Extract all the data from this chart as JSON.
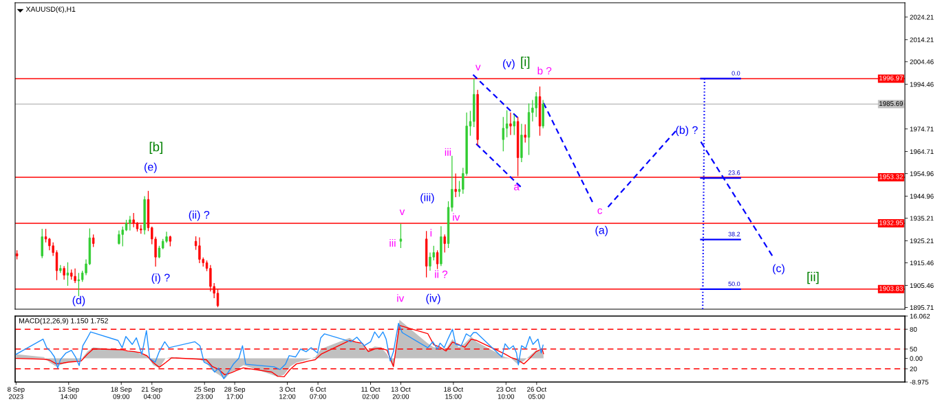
{
  "chart_data": [
    {
      "type": "candlestick",
      "title": "XAUUSD(€),H1",
      "x": [
        "2023-09-08T21:00",
        "2023-09-11T04:00",
        "2023-09-11T12:00",
        "2023-09-11T20:00",
        "2023-09-12T04:00",
        "2023-09-12T12:00",
        "2023-09-12T20:00",
        "2023-09-13T04:00",
        "2023-09-13T12:00",
        "2023-09-13T20:00",
        "2023-09-14T04:00",
        "2023-09-14T12:00",
        "2023-09-14T20:00",
        "2023-09-15T04:00",
        "2023-09-15T12:00",
        "2023-09-15T20:00",
        "2023-09-18T04:00",
        "2023-09-18T12:00",
        "2023-09-18T20:00",
        "2023-09-19T04:00",
        "2023-09-19T12:00",
        "2023-09-19T20:00",
        "2023-09-20T04:00",
        "2023-09-20T12:00",
        "2023-09-20T20:00",
        "2023-09-21T04:00",
        "2023-09-21T12:00",
        "2023-09-21T20:00",
        "2023-09-22T04:00",
        "2023-09-22T12:00",
        "2023-09-22T20:00",
        "2023-09-25T04:00",
        "2023-09-25T12:00",
        "2023-09-25T20:00",
        "2023-09-26T04:00",
        "2023-09-26T12:00",
        "2023-09-26T20:00",
        "2023-09-27T04:00",
        "2023-10-13T20:00",
        "2023-10-16T04:00",
        "2023-10-16T12:00",
        "2023-10-16T20:00",
        "2023-10-17T04:00",
        "2023-10-17T12:00",
        "2023-10-17T20:00",
        "2023-10-18T04:00",
        "2023-10-18T12:00",
        "2023-10-18T20:00",
        "2023-10-19T04:00",
        "2023-10-19T12:00",
        "2023-10-19T20:00",
        "2023-10-20T04:00",
        "2023-10-20T12:00",
        "2023-10-20T20:00",
        "2023-10-23T04:00",
        "2023-10-23T12:00",
        "2023-10-23T20:00",
        "2023-10-24T04:00",
        "2023-10-24T12:00",
        "2023-10-24T20:00",
        "2023-10-25T04:00",
        "2023-10-25T12:00",
        "2023-10-25T20:00",
        "2023-10-26T04:00",
        "2023-10-26T12:00",
        "2023-10-26T19:00"
      ],
      "ohlc": [
        [
          1919.5,
          1921,
          1917,
          1918.5
        ],
        [
          1918.5,
          1930.5,
          1917.5,
          1927
        ],
        [
          1927,
          1930.5,
          1924.5,
          1926
        ],
        [
          1926,
          1926.5,
          1921,
          1923
        ],
        [
          1923,
          1924.5,
          1918.5,
          1920
        ],
        [
          1920,
          1921,
          1907.8,
          1912
        ],
        [
          1912,
          1914.5,
          1911,
          1913
        ],
        [
          1913,
          1914,
          1908,
          1910
        ],
        [
          1910,
          1915.7,
          1905.3,
          1911
        ],
        [
          1911,
          1912.5,
          1908,
          1909.5
        ],
        [
          1909.5,
          1913,
          1906.5,
          1907.5
        ],
        [
          1907.5,
          1911,
          1900.7,
          1908
        ],
        [
          1908,
          1912,
          1907,
          1911
        ],
        [
          1911,
          1917,
          1910,
          1915
        ],
        [
          1915,
          1930.7,
          1914.5,
          1926.5
        ],
        [
          1926.5,
          1928,
          1922.5,
          1924
        ],
        [
          1924,
          1929.8,
          1923.5,
          1928
        ],
        [
          1928,
          1931.5,
          1922.8,
          1930
        ],
        [
          1930,
          1934.5,
          1929.5,
          1933
        ],
        [
          1933,
          1936.2,
          1929.8,
          1934.5
        ],
        [
          1934.5,
          1937.5,
          1931.2,
          1933
        ],
        [
          1933,
          1933.5,
          1929.3,
          1930.5
        ],
        [
          1930.5,
          1932.3,
          1928.3,
          1930
        ],
        [
          1930,
          1945,
          1928,
          1943.5
        ],
        [
          1943.5,
          1947.3,
          1929.5,
          1931
        ],
        [
          1931,
          1931.5,
          1923.7,
          1926
        ],
        [
          1926,
          1927,
          1913.8,
          1918
        ],
        [
          1918,
          1923,
          1917.5,
          1922
        ],
        [
          1922,
          1926,
          1921.5,
          1925
        ],
        [
          1925,
          1929.2,
          1924.3,
          1927
        ],
        [
          1927,
          1927.5,
          1922.8,
          1925
        ],
        [
          1925,
          1927.2,
          1921.2,
          1923
        ],
        [
          1923,
          1926.7,
          1915.3,
          1917
        ],
        [
          1917,
          1917.8,
          1913.8,
          1915.5
        ],
        [
          1915.5,
          1916.5,
          1911.8,
          1913
        ],
        [
          1913,
          1914.5,
          1902.8,
          1905
        ],
        [
          1905,
          1906.5,
          1899.8,
          1902
        ],
        [
          1902,
          1903.7,
          1895.8,
          1896.5
        ],
        [
          1925,
          1932.7,
          1922,
          1926
        ],
        [
          1926,
          1929.5,
          1909,
          1914
        ],
        [
          1914,
          1920,
          1912,
          1918
        ],
        [
          1918,
          1923,
          1916.5,
          1920
        ],
        [
          1920,
          1921,
          1912.7,
          1915
        ],
        [
          1915,
          1931.7,
          1914,
          1927
        ],
        [
          1927,
          1928,
          1920,
          1924
        ],
        [
          1924,
          1942.7,
          1922,
          1940
        ],
        [
          1940,
          1962.8,
          1938.2,
          1948
        ],
        [
          1948,
          1955,
          1944.5,
          1947
        ],
        [
          1947,
          1951.7,
          1944.7,
          1948
        ],
        [
          1948,
          1957.5,
          1946,
          1955
        ],
        [
          1955,
          1982,
          1954,
          1976
        ],
        [
          1976,
          1982.7,
          1971.7,
          1978
        ],
        [
          1978,
          1997,
          1975.5,
          1990
        ],
        [
          1990,
          1992,
          1967.5,
          1970
        ],
        [
          1970,
          1980,
          1964.8,
          1975
        ],
        [
          1975,
          1983,
          1971,
          1977
        ],
        [
          1977,
          1982,
          1972,
          1976
        ],
        [
          1976,
          1981,
          1972,
          1978
        ],
        [
          1978,
          1980,
          1953.8,
          1962
        ],
        [
          1962,
          1977,
          1960,
          1972
        ],
        [
          1972,
          1976.7,
          1968.7,
          1971
        ],
        [
          1971,
          1986,
          1963.2,
          1982
        ],
        [
          1982,
          1987.5,
          1978,
          1984
        ],
        [
          1984,
          1991,
          1980,
          1989
        ],
        [
          1989,
          1993.5,
          1971.7,
          1976
        ],
        [
          1976,
          1987.5,
          1975,
          1985.69
        ]
      ],
      "colors": [
        "#ff0000",
        "#32cd32",
        "#ff0000",
        "#ff0000",
        "#ff0000",
        "#ff0000",
        "#32cd32",
        "#ff0000",
        "#32cd32",
        "#ff0000",
        "#ff0000",
        "#32cd32",
        "#32cd32",
        "#32cd32",
        "#32cd32",
        "#ff0000",
        "#32cd32",
        "#32cd32",
        "#32cd32",
        "#32cd32",
        "#ff0000",
        "#ff0000",
        "#ff0000",
        "#32cd32",
        "#ff0000",
        "#ff0000",
        "#ff0000",
        "#32cd32",
        "#32cd32",
        "#32cd32",
        "#ff0000",
        "#ff0000",
        "#ff0000",
        "#ff0000",
        "#ff0000",
        "#ff0000",
        "#ff0000",
        "#ff0000",
        "#32cd32",
        "#ff0000",
        "#32cd32",
        "#32cd32",
        "#ff0000",
        "#32cd32",
        "#ff0000",
        "#32cd32",
        "#32cd32",
        "#ff0000",
        "#32cd32",
        "#32cd32",
        "#32cd32",
        "#32cd32",
        "#32cd32",
        "#ff0000",
        "#32cd32",
        "#32cd32",
        "#ff0000",
        "#32cd32",
        "#ff0000",
        "#32cd32",
        "#ff0000",
        "#32cd32",
        "#32cd32",
        "#32cd32",
        "#ff0000",
        "#32cd32"
      ],
      "series": [
        {
          "type": "line",
          "x": [
            "2023-10-20T10:00",
            "2023-10-24T11:00"
          ],
          "values": [
            1998.7,
            1979.8
          ],
          "color": "#0000ff",
          "line_style": "dashed"
        },
        {
          "type": "line",
          "x": [
            "2023-10-20T17:00",
            "2023-10-24T18:00"
          ],
          "values": [
            1968.1,
            1949.1
          ],
          "color": "#0000ff",
          "line_style": "dashed"
        },
        {
          "type": "line",
          "x": [
            "2023-10-26T20:00",
            "2023-10-31T07:00"
          ],
          "values": [
            1986.2,
            1942.4
          ],
          "color": "#0000ff",
          "line_style": "dashed"
        },
        {
          "type": "line",
          "x": [
            "2023-11-01T17:00",
            "2023-11-07T21:00"
          ],
          "values": [
            1940.2,
            1973.8
          ],
          "color": "#0000ff",
          "line_style": "dashed"
        },
        {
          "type": "line",
          "x": [
            "2023-11-10T04:00",
            "2023-11-16T16:00"
          ],
          "values": [
            1969.0,
            1918.6
          ],
          "color": "#0000ff",
          "line_style": "dashed"
        },
        {
          "type": "line",
          "x": [
            "2023-11-10T12:00",
            "2023-11-10T08:00"
          ],
          "values": [
            1997.0,
            1895.0
          ],
          "color": "#0000ff",
          "line_style": "dotted"
        },
        {
          "type": "line",
          "x": [
            "2023-11-10T04:00",
            "2023-11-13T18:00"
          ],
          "values": [
            1997.0,
            1997.0
          ],
          "color": "#0000ff"
        },
        {
          "type": "line",
          "x": [
            "2023-11-10T04:00",
            "2023-11-13T18:00"
          ],
          "values": [
            1953.0,
            1953.0
          ],
          "color": "#0000ff"
        },
        {
          "type": "line",
          "x": [
            "2023-11-10T04:00",
            "2023-11-13T18:00"
          ],
          "values": [
            1925.8,
            1925.8
          ],
          "color": "#0000ff"
        },
        {
          "type": "line",
          "x": [
            "2023-11-10T04:00",
            "2023-11-13T18:00"
          ],
          "values": [
            1903.8,
            1903.8
          ],
          "color": "#0000ff"
        }
      ],
      "xlim": [
        "2023-09-08T17:00",
        "2023-11-28T18:00"
      ],
      "ylim": [
        1894.95,
        2030.55
      ],
      "yticks": [
        2024.21,
        2014.21,
        2004.46,
        1994.46,
        1974.71,
        1964.71,
        1954.96,
        1944.96,
        1935.21,
        1925.21,
        1915.46,
        1905.46,
        1895.71
      ],
      "tick_labels": "y",
      "ref_lines": [
        {
          "axis": "y",
          "value": 1996.97,
          "label": "1996.97",
          "color": "#ff0000"
        },
        {
          "axis": "y",
          "value": 1985.69,
          "label": "1985.69",
          "color": "#c0c0c0"
        },
        {
          "axis": "y",
          "value": 1953.32,
          "label": "1953.32",
          "color": "#ff0000"
        },
        {
          "axis": "y",
          "value": 1932.95,
          "label": "1932.95",
          "color": "#ff0000"
        },
        {
          "axis": "y",
          "value": 1903.83,
          "label": "1903.83",
          "color": "#ff0000"
        }
      ],
      "annotations": [
        "[b]",
        "(e)",
        "(ii) ?",
        "(i) ?",
        "(d)",
        "(iii)",
        "v",
        "iii",
        "i",
        "ii ?",
        "iv",
        "(iv)",
        "iii",
        "iv",
        "v",
        "(v)",
        "[i]",
        "a",
        "b ?",
        "c",
        "(a)",
        "(b) ?",
        "(c)",
        "[ii]",
        {
          "text": "0.0",
          "x": "2023-11-13T18:00",
          "y": 1997.0
        },
        {
          "text": "23.6",
          "x": "2023-11-13T18:00",
          "y": 1953.0
        },
        {
          "text": "38.2",
          "x": "2023-11-13T18:00",
          "y": 1925.8
        },
        {
          "text": "50.0",
          "x": "2023-11-13T18:00",
          "y": 1903.8
        }
      ]
    },
    {
      "type": "line",
      "title": "MACD(12,26,9) 1.150 1.752",
      "x": [
        "2023-09-08T19:00",
        "2023-09-11T08:00",
        "2023-09-11T21:00",
        "2023-09-12T11:00",
        "2023-09-13T01:00",
        "2023-09-13T14:00",
        "2023-09-14T04:00",
        "2023-09-14T17:00",
        "2023-09-15T07:00",
        "2023-09-15T20:00",
        "2023-09-18T10:00",
        "2023-09-18T23:00",
        "2023-09-19T13:00",
        "2023-09-20T03:00",
        "2023-09-20T17:00",
        "2023-09-21T07:00",
        "2023-09-21T20:00",
        "2023-09-22T10:00",
        "2023-09-22T23:00",
        "2023-09-25T13:00",
        "2023-09-26T03:00",
        "2023-09-26T16:00",
        "2023-09-27T06:00",
        "2023-09-27T19:00",
        "2023-09-28T09:00",
        "2023-09-28T22:00",
        "2023-09-29T12:00",
        "2023-10-02T02:00",
        "2023-10-02T15:00",
        "2023-10-03T05:00",
        "2023-10-03T18:00",
        "2023-10-04T08:00",
        "2023-10-04T21:00",
        "2023-10-05T11:00",
        "2023-10-06T01:00",
        "2023-10-06T14:00",
        "2023-10-09T04:00",
        "2023-10-09T18:00",
        "2023-10-10T08:00",
        "2023-10-10T21:00",
        "2023-10-11T11:00",
        "2023-10-12T01:00",
        "2023-10-12T14:00",
        "2023-10-13T04:00",
        "2023-10-13T17:00",
        "2023-10-16T07:00",
        "2023-10-16T20:00",
        "2023-10-17T10:00",
        "2023-10-17T23:00",
        "2023-10-18T13:00",
        "2023-10-19T03:00",
        "2023-10-19T16:00",
        "2023-10-20T06:00",
        "2023-10-20T18:00",
        "2023-10-23T08:00",
        "2023-10-23T21:00",
        "2023-10-24T11:00",
        "2023-10-25T01:00",
        "2023-10-25T14:00",
        "2023-10-26T04:00",
        "2023-10-26T17:00",
        "2023-10-26T20:00"
      ],
      "series": [
        {
          "type": "area",
          "color": "#c0c0c0",
          "values": [
            1.6,
            0.5,
            -1.6,
            -3.1,
            -2.1,
            -1.4,
            -1.0,
            -0.5,
            2.6,
            4.2,
            3.1,
            2.6,
            2.8,
            1.6,
            1.0,
            -2.6,
            -3.6,
            0,
            0.5,
            -0.5,
            -1.6,
            -4.7,
            -6.2,
            -7.8,
            -5.2,
            -4.2,
            -2.6,
            -6.2,
            -7.0,
            -6.2,
            -3.1,
            -1.6,
            -1.0,
            -0.3,
            0.5,
            3.6,
            7.8,
            6.2,
            5.2,
            3.1,
            4.5,
            4.2,
            1.6,
            -3.6,
            14.6,
            5.7,
            4.2,
            4.2,
            3.6,
            7.3,
            4.2,
            5.7,
            8.3,
            6.2,
            0.5,
            0,
            -2.1,
            -1.0,
            1.0,
            3.1,
            2.6,
            1.15
          ]
        },
        {
          "type": "line",
          "color": "#ff0000",
          "values": [
            0,
            -0.3,
            -0.7,
            -2.1,
            -1.8,
            -1.4,
            -1.2,
            -1.0,
            1.6,
            3.6,
            3.3,
            2.8,
            2.6,
            2.1,
            1.0,
            -1.6,
            -3.4,
            -1.6,
            0.2,
            -0.3,
            -0.5,
            -3.1,
            -4.2,
            -6.2,
            -5.5,
            -4.5,
            -3.6,
            -5.2,
            -6.8,
            -7.0,
            -4.2,
            -2.1,
            -1.6,
            -1.0,
            -0.5,
            1.6,
            6.8,
            6.2,
            5.7,
            2.6,
            3.6,
            3.8,
            3.1,
            -3.1,
            12.5,
            9.4,
            5.2,
            4.2,
            2.8,
            6.2,
            5.2,
            4.2,
            7.3,
            6.8,
            1.6,
            0.3,
            -0.5,
            -2.1,
            0,
            2.6,
            3.6,
            1.752
          ]
        },
        {
          "type": "line",
          "color": "#1e90ff",
          "axis": "y2",
          "x": [
            "2023-09-08T19:00",
            "2023-09-11T06:00",
            "2023-09-11T14:00",
            "2023-09-11T23:00",
            "2023-09-12T07:00",
            "2023-09-12T14:00",
            "2023-09-12T20:00",
            "2023-09-13T08:00",
            "2023-09-13T20:00",
            "2023-09-14T05:00",
            "2023-09-14T13:00",
            "2023-09-14T21:00",
            "2023-09-15T07:00",
            "2023-09-15T14:00",
            "2023-09-18T02:00",
            "2023-09-18T11:00",
            "2023-09-18T19:00",
            "2023-09-19T09:00",
            "2023-09-19T18:00",
            "2023-09-20T06:00",
            "2023-09-20T16:00",
            "2023-09-20T23:00",
            "2023-09-21T11:00",
            "2023-09-21T20:00",
            "2023-09-22T08:00",
            "2023-09-22T17:00",
            "2023-09-25T02:00",
            "2023-09-25T13:00",
            "2023-09-25T22:00",
            "2023-09-26T12:00",
            "2023-09-26T21:00",
            "2023-09-27T06:00",
            "2023-09-27T17:00",
            "2023-09-28T03:00",
            "2023-09-28T14:00",
            "2023-09-29T02:00",
            "2023-09-29T10:00",
            "2023-09-29T17:00",
            "2023-10-02T07:00",
            "2023-10-02T20:00",
            "2023-10-03T08:00",
            "2023-10-03T16:00",
            "2023-10-04T06:00",
            "2023-10-04T17:00",
            "2023-10-05T05:00",
            "2023-10-05T16:00",
            "2023-10-06T06:00",
            "2023-10-06T13:00",
            "2023-10-06T21:00",
            "2023-10-09T07:00",
            "2023-10-09T20:00",
            "2023-10-10T12:00",
            "2023-10-11T02:00",
            "2023-10-11T11:00",
            "2023-10-11T20:00",
            "2023-10-12T05:00",
            "2023-10-12T12:00",
            "2023-10-12T21:00",
            "2023-10-13T04:00",
            "2023-10-13T15:00",
            "2023-10-13T23:00",
            "2023-10-16T07:00",
            "2023-10-16T18:00",
            "2023-10-17T04:00",
            "2023-10-17T10:00",
            "2023-10-17T19:00",
            "2023-10-18T03:00",
            "2023-10-18T13:00",
            "2023-10-18T20:00",
            "2023-10-19T08:00",
            "2023-10-19T19:00",
            "2023-10-20T04:00",
            "2023-10-20T11:00",
            "2023-10-20T17:00",
            "2023-10-23T01:00",
            "2023-10-23T08:00",
            "2023-10-23T17:00",
            "2023-10-24T02:00",
            "2023-10-24T09:00",
            "2023-10-24T13:00",
            "2023-10-24T20:00",
            "2023-10-25T05:00",
            "2023-10-25T14:00",
            "2023-10-25T21:00",
            "2023-10-26T08:00",
            "2023-10-26T15:00",
            "2023-10-26T19:00"
          ],
          "values": [
            42,
            65,
            52,
            46,
            38,
            21,
            34,
            44,
            48,
            38,
            25,
            55,
            67,
            76,
            63,
            52,
            69,
            57,
            67,
            42,
            78,
            36,
            30,
            46,
            61,
            52,
            61,
            55,
            30,
            25,
            15,
            21,
            5,
            15,
            27,
            36,
            55,
            27,
            23,
            19,
            27,
            40,
            38,
            50,
            46,
            52,
            44,
            67,
            73,
            61,
            68,
            55,
            61,
            76,
            67,
            76,
            65,
            32,
            46,
            89,
            75,
            52,
            61,
            50,
            59,
            52,
            65,
            80,
            57,
            55,
            73,
            69,
            75,
            75,
            38,
            58,
            50,
            55,
            44,
            26,
            55,
            51,
            69,
            57,
            65,
            44,
            56
          ]
        }
      ],
      "xlim": [
        "2023-09-08T17:00",
        "2023-11-28T18:00"
      ],
      "xticks": [
        {
          "value": "2023-09-08T19:00",
          "label": "8 Sep 2023"
        },
        {
          "value": "2023-09-13T14:00",
          "label": "13 Sep 14:00"
        },
        {
          "value": "2023-09-18T09:00",
          "label": "18 Sep 09:00"
        },
        {
          "value": "2023-09-21T04:00",
          "label": "21 Sep 04:00"
        },
        {
          "value": "2023-09-25T23:00",
          "label": "25 Sep 23:00"
        },
        {
          "value": "2023-09-28T17:00",
          "label": "28 Sep 17:00"
        },
        {
          "value": "2023-10-03T12:00",
          "label": "3 Oct 12:00"
        },
        {
          "value": "2023-10-06T07:00",
          "label": "6 Oct 07:00"
        },
        {
          "value": "2023-10-11T02:00",
          "label": "11 Oct 02:00"
        },
        {
          "value": "2023-10-13T20:00",
          "label": "13 Oct 20:00"
        },
        {
          "value": "2023-10-18T15:00",
          "label": "18 Oct 15:00"
        },
        {
          "value": "2023-10-23T10:00",
          "label": "23 Oct 10:00"
        },
        {
          "value": "2023-10-26T05:00",
          "label": "26 Oct 05:00"
        }
      ],
      "ylim": [
        -8.975,
        16.062
      ],
      "yticks": [
        16.062,
        {
          "value": 0,
          "label": "0.00"
        },
        -8.975
      ],
      "y2lim": [
        0,
        100
      ],
      "y2ticks": [
        80,
        50,
        20
      ],
      "ref_lines": [
        {
          "axis": "y2",
          "value": 80,
          "color": "#ff0000",
          "line_style": "dashed"
        },
        {
          "axis": "y2",
          "value": 50,
          "color": "#ff0000",
          "line_style": "dashed"
        },
        {
          "axis": "y2",
          "value": 20,
          "color": "#ff0000",
          "line_style": "dashed"
        }
      ]
    }
  ]
}
